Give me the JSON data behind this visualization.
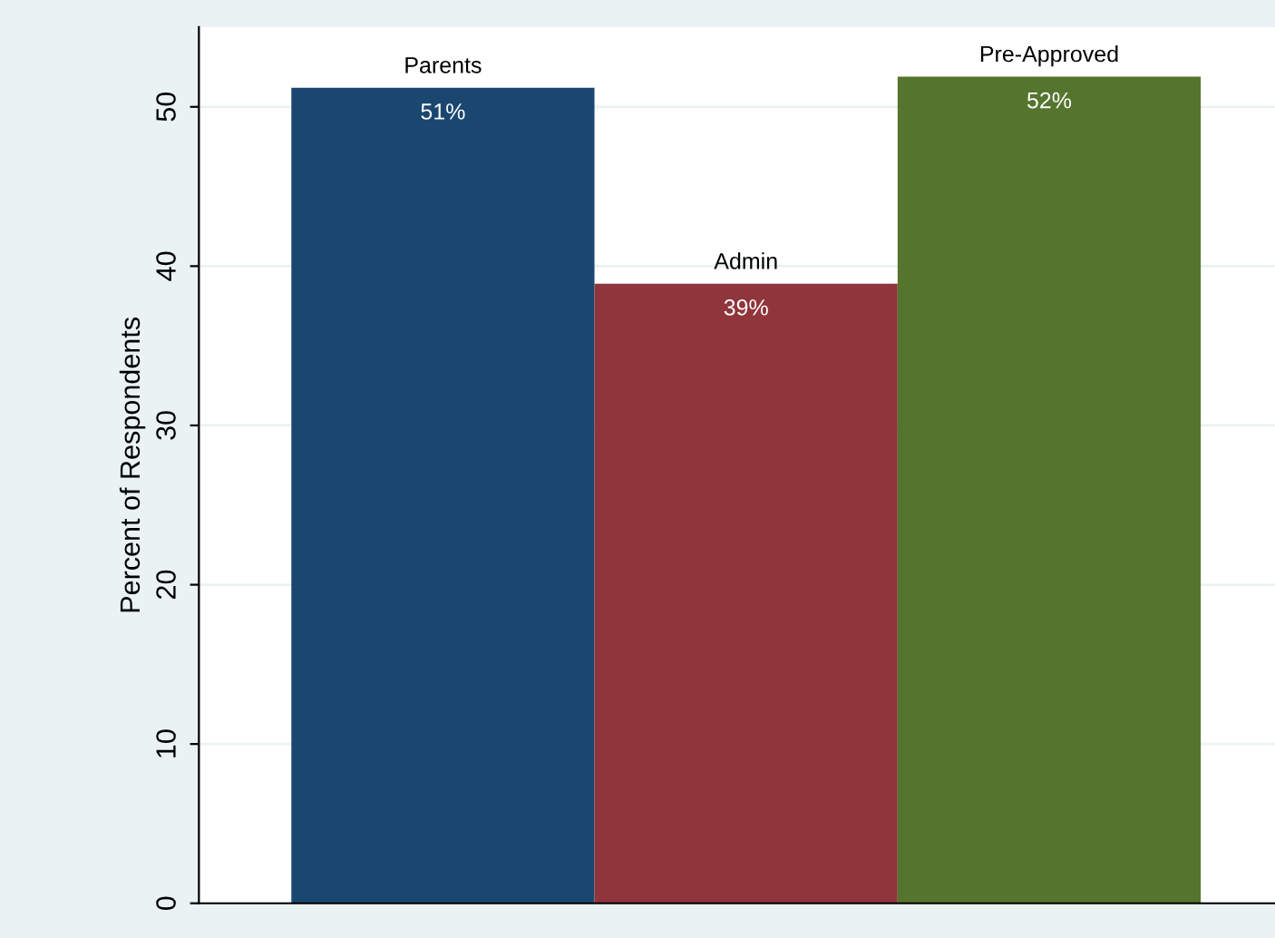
{
  "chart_data": {
    "type": "bar",
    "ylabel": "Percent of Respondents",
    "categories": [
      "Parents",
      "Admin",
      "Pre-Approved"
    ],
    "values": [
      51.2,
      38.9,
      51.9
    ],
    "colors": [
      "#1a476f",
      "#90353b",
      "#55752f"
    ],
    "value_labels": [
      "51%",
      "39%",
      "52%"
    ],
    "ylim": [
      0,
      55
    ],
    "yticks": [
      0,
      10,
      20,
      30,
      40,
      50
    ],
    "grid": "y",
    "legend": false
  }
}
